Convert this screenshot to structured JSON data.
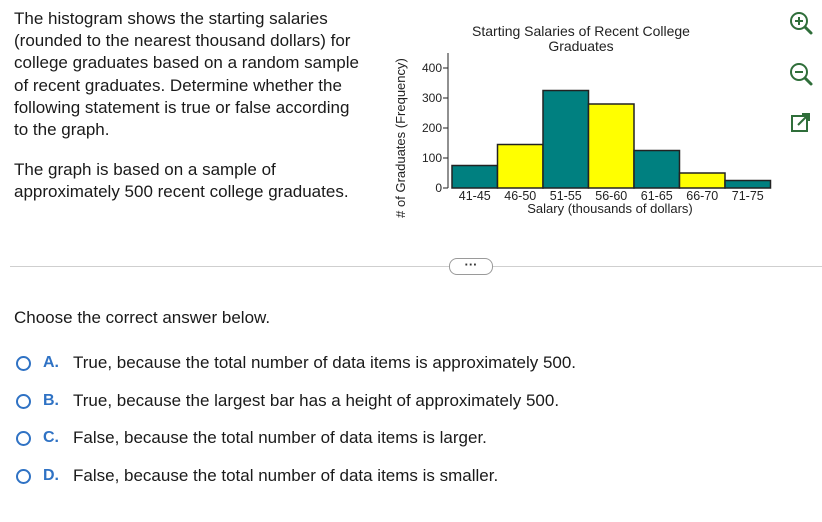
{
  "question": {
    "paragraph1": "The histogram shows the starting salaries (rounded to the nearest thousand dollars) for college graduates based on a random sample of recent graduates. Determine whether the following statement is true or false according to the graph.",
    "paragraph2": "The graph is based on a sample of approximately 500 recent college graduates."
  },
  "chart_data": {
    "type": "bar",
    "title": "Starting Salaries of Recent College Graduates",
    "xlabel": "Salary (thousands of dollars)",
    "ylabel": "# of Graduates (Frequency)",
    "categories": [
      "41-45",
      "46-50",
      "51-55",
      "56-60",
      "61-65",
      "66-70",
      "71-75"
    ],
    "values": [
      75,
      145,
      325,
      280,
      125,
      50,
      25
    ],
    "bar_colors": [
      "#008080",
      "#ffff00",
      "#008080",
      "#ffff00",
      "#008080",
      "#ffff00",
      "#008080"
    ],
    "yticks": [
      0,
      100,
      200,
      300,
      400
    ],
    "ylim": [
      0,
      450
    ],
    "grid": false
  },
  "tools": {
    "zoom_in": "zoom-in-icon",
    "zoom_out": "zoom-out-icon",
    "popout": "popout-icon"
  },
  "more_button": "···",
  "prompt": "Choose the correct answer below.",
  "options": [
    {
      "letter": "A.",
      "text": "True, because the total number of data items is approximately 500."
    },
    {
      "letter": "B.",
      "text": "True, because the largest bar has a height of approximately 500."
    },
    {
      "letter": "C.",
      "text": "False, because the total number of data items is larger."
    },
    {
      "letter": "D.",
      "text": "False, because the total number of data items is smaller."
    }
  ],
  "colors": {
    "accent": "#2f72c4",
    "teal": "#008080",
    "yellow": "#ffff00"
  }
}
